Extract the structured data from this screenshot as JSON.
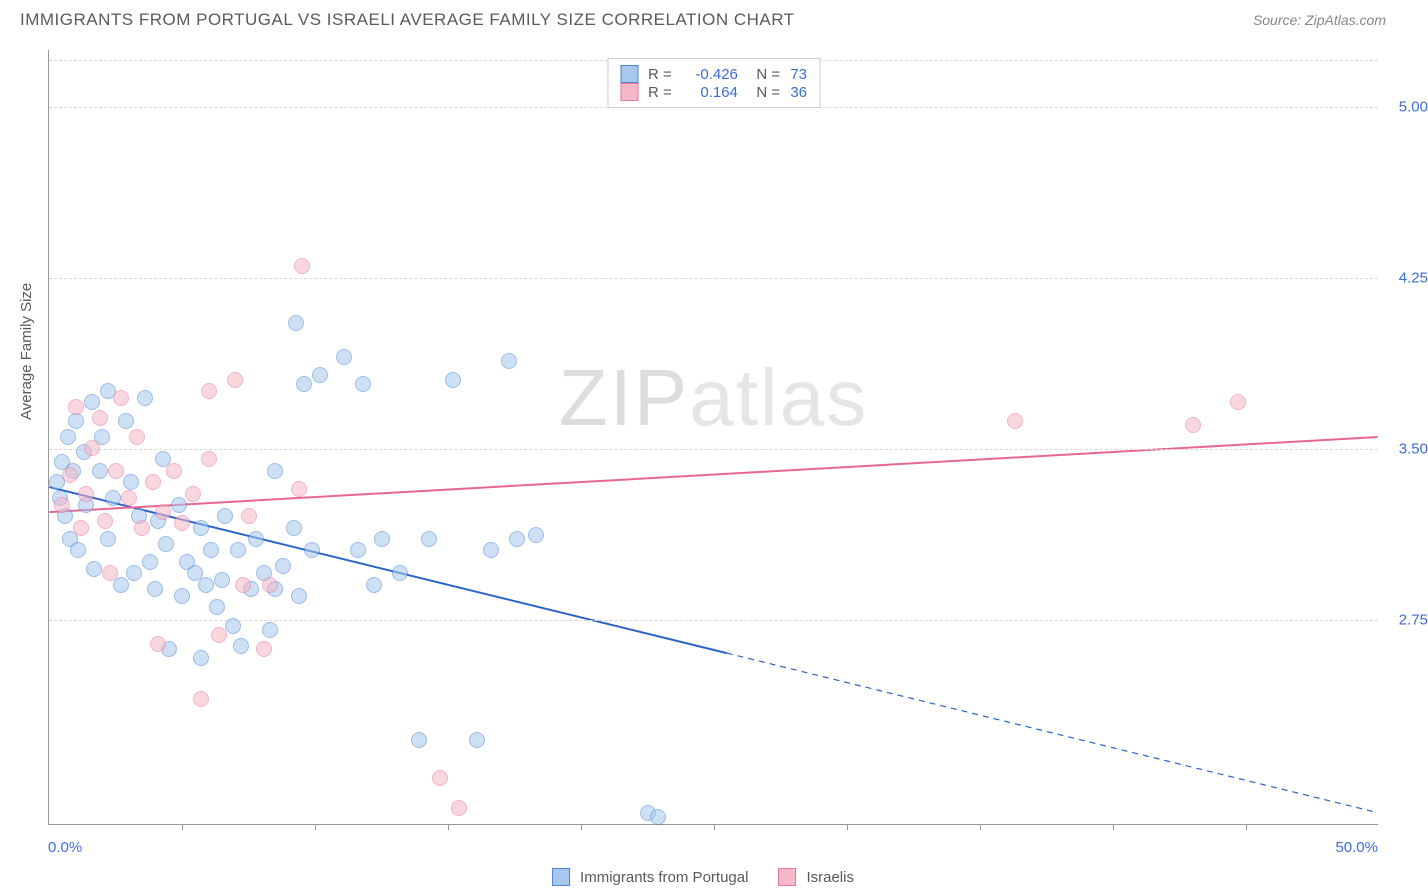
{
  "title": "IMMIGRANTS FROM PORTUGAL VS ISRAELI AVERAGE FAMILY SIZE CORRELATION CHART",
  "source": "Source: ZipAtlas.com",
  "yaxis_title": "Average Family Size",
  "watermark_bold": "ZIP",
  "watermark_thin": "atlas",
  "chart": {
    "type": "scatter",
    "xlim": [
      0,
      50
    ],
    "ylim": [
      1.85,
      5.25
    ],
    "x_labels": {
      "min": "0.0%",
      "max": "50.0%"
    },
    "y_ticks": [
      2.75,
      3.5,
      4.25,
      5.0
    ],
    "y_tick_labels": [
      "2.75",
      "3.50",
      "4.25",
      "5.00"
    ],
    "x_minor_ticks": [
      5,
      10,
      15,
      20,
      25,
      30,
      35,
      40,
      45
    ],
    "grid_color": "#d8d8d8",
    "axis_color": "#999999",
    "tick_label_color": "#3b6fd6",
    "background_color": "#ffffff",
    "marker_radius": 8,
    "marker_opacity": 0.55,
    "marker_border_opacity": 0.9,
    "series": [
      {
        "name": "Immigrants from Portugal",
        "color_fill": "#a7c7ec",
        "color_stroke": "#4d87d6",
        "R": "-0.426",
        "N": "73",
        "trend": {
          "y_at_x0": 3.33,
          "y_at_x50": 1.9,
          "solid_until_x": 25.5,
          "color": "#2a63c9",
          "width": 2
        },
        "points": [
          [
            0.3,
            3.35
          ],
          [
            0.4,
            3.28
          ],
          [
            0.5,
            3.44
          ],
          [
            0.6,
            3.2
          ],
          [
            0.7,
            3.55
          ],
          [
            0.8,
            3.1
          ],
          [
            0.9,
            3.4
          ],
          [
            1.0,
            3.62
          ],
          [
            1.1,
            3.05
          ],
          [
            1.3,
            3.48
          ],
          [
            1.4,
            3.25
          ],
          [
            1.6,
            3.7
          ],
          [
            1.7,
            2.97
          ],
          [
            1.9,
            3.4
          ],
          [
            2.0,
            3.55
          ],
          [
            2.2,
            3.1
          ],
          [
            2.4,
            3.28
          ],
          [
            2.7,
            2.9
          ],
          [
            2.2,
            3.75
          ],
          [
            2.9,
            3.62
          ],
          [
            3.1,
            3.35
          ],
          [
            3.2,
            2.95
          ],
          [
            3.4,
            3.2
          ],
          [
            3.6,
            3.72
          ],
          [
            3.8,
            3.0
          ],
          [
            4.0,
            2.88
          ],
          [
            4.1,
            3.18
          ],
          [
            4.3,
            3.45
          ],
          [
            4.5,
            2.62
          ],
          [
            4.4,
            3.08
          ],
          [
            4.9,
            3.25
          ],
          [
            5.0,
            2.85
          ],
          [
            5.2,
            3.0
          ],
          [
            5.5,
            2.95
          ],
          [
            5.7,
            3.15
          ],
          [
            5.7,
            2.58
          ],
          [
            5.9,
            2.9
          ],
          [
            6.1,
            3.05
          ],
          [
            6.3,
            2.8
          ],
          [
            6.5,
            2.92
          ],
          [
            6.6,
            3.2
          ],
          [
            6.9,
            2.72
          ],
          [
            7.1,
            3.05
          ],
          [
            7.2,
            2.63
          ],
          [
            7.6,
            2.88
          ],
          [
            7.8,
            3.1
          ],
          [
            8.1,
            2.95
          ],
          [
            8.3,
            2.7
          ],
          [
            8.5,
            3.4
          ],
          [
            8.5,
            2.88
          ],
          [
            8.8,
            2.98
          ],
          [
            9.3,
            4.05
          ],
          [
            9.2,
            3.15
          ],
          [
            9.4,
            2.85
          ],
          [
            9.6,
            3.78
          ],
          [
            9.9,
            3.05
          ],
          [
            10.2,
            3.82
          ],
          [
            11.1,
            3.9
          ],
          [
            11.6,
            3.05
          ],
          [
            11.8,
            3.78
          ],
          [
            12.2,
            2.9
          ],
          [
            12.5,
            3.1
          ],
          [
            13.2,
            2.95
          ],
          [
            13.9,
            2.22
          ],
          [
            14.3,
            3.1
          ],
          [
            15.2,
            3.8
          ],
          [
            16.1,
            2.22
          ],
          [
            16.6,
            3.05
          ],
          [
            17.3,
            3.88
          ],
          [
            17.6,
            3.1
          ],
          [
            18.3,
            3.12
          ],
          [
            22.5,
            1.9
          ],
          [
            22.9,
            1.88
          ]
        ]
      },
      {
        "name": "Israelis",
        "color_fill": "#f4b8c6",
        "color_stroke": "#e976a0",
        "R": "0.164",
        "N": "36",
        "trend": {
          "y_at_x0": 3.22,
          "y_at_x50": 3.55,
          "solid_until_x": 50,
          "color": "#e86694",
          "width": 2
        },
        "points": [
          [
            0.5,
            3.25
          ],
          [
            0.8,
            3.38
          ],
          [
            1.0,
            3.68
          ],
          [
            1.2,
            3.15
          ],
          [
            1.4,
            3.3
          ],
          [
            1.6,
            3.5
          ],
          [
            1.9,
            3.63
          ],
          [
            2.1,
            3.18
          ],
          [
            2.3,
            2.95
          ],
          [
            2.5,
            3.4
          ],
          [
            2.7,
            3.72
          ],
          [
            3.0,
            3.28
          ],
          [
            3.3,
            3.55
          ],
          [
            3.5,
            3.15
          ],
          [
            3.9,
            3.35
          ],
          [
            4.1,
            2.64
          ],
          [
            4.3,
            3.22
          ],
          [
            4.7,
            3.4
          ],
          [
            5.0,
            3.17
          ],
          [
            5.4,
            3.3
          ],
          [
            5.7,
            2.4
          ],
          [
            6.0,
            3.45
          ],
          [
            6.0,
            3.75
          ],
          [
            6.4,
            2.68
          ],
          [
            7.0,
            3.8
          ],
          [
            7.3,
            2.9
          ],
          [
            7.5,
            3.2
          ],
          [
            8.1,
            2.62
          ],
          [
            8.3,
            2.9
          ],
          [
            9.4,
            3.32
          ],
          [
            9.5,
            4.3
          ],
          [
            14.7,
            2.05
          ],
          [
            15.4,
            1.92
          ],
          [
            36.3,
            3.62
          ],
          [
            43.0,
            3.6
          ],
          [
            44.7,
            3.7
          ]
        ]
      }
    ]
  }
}
